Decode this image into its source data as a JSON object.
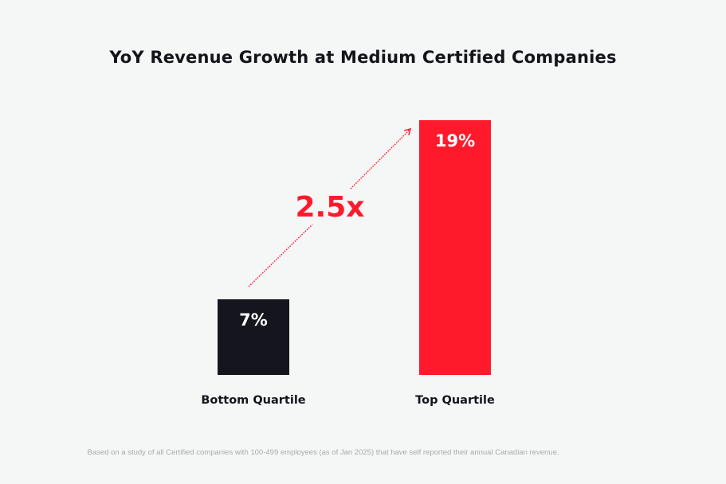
{
  "chart_data": {
    "type": "bar",
    "title": "YoY Revenue Growth at Medium Certified Companies",
    "categories": [
      "Bottom Quartile",
      "Top Quartile"
    ],
    "values": [
      7,
      19
    ],
    "data_labels": [
      "7%",
      "19%"
    ],
    "colors": [
      "#14151d",
      "#ff1a2b"
    ],
    "annotation": {
      "text": "2.5x",
      "color": "#ff1a2b",
      "style": "dotted arrow from Bottom Quartile to Top Quartile"
    },
    "xlabel": "",
    "ylabel": "",
    "grid": false,
    "legend": "none"
  },
  "footnote": "Based on a study of all Certified companies with 100-499 employees (as of Jan 2025) that have self reported their annual Canadian revenue."
}
